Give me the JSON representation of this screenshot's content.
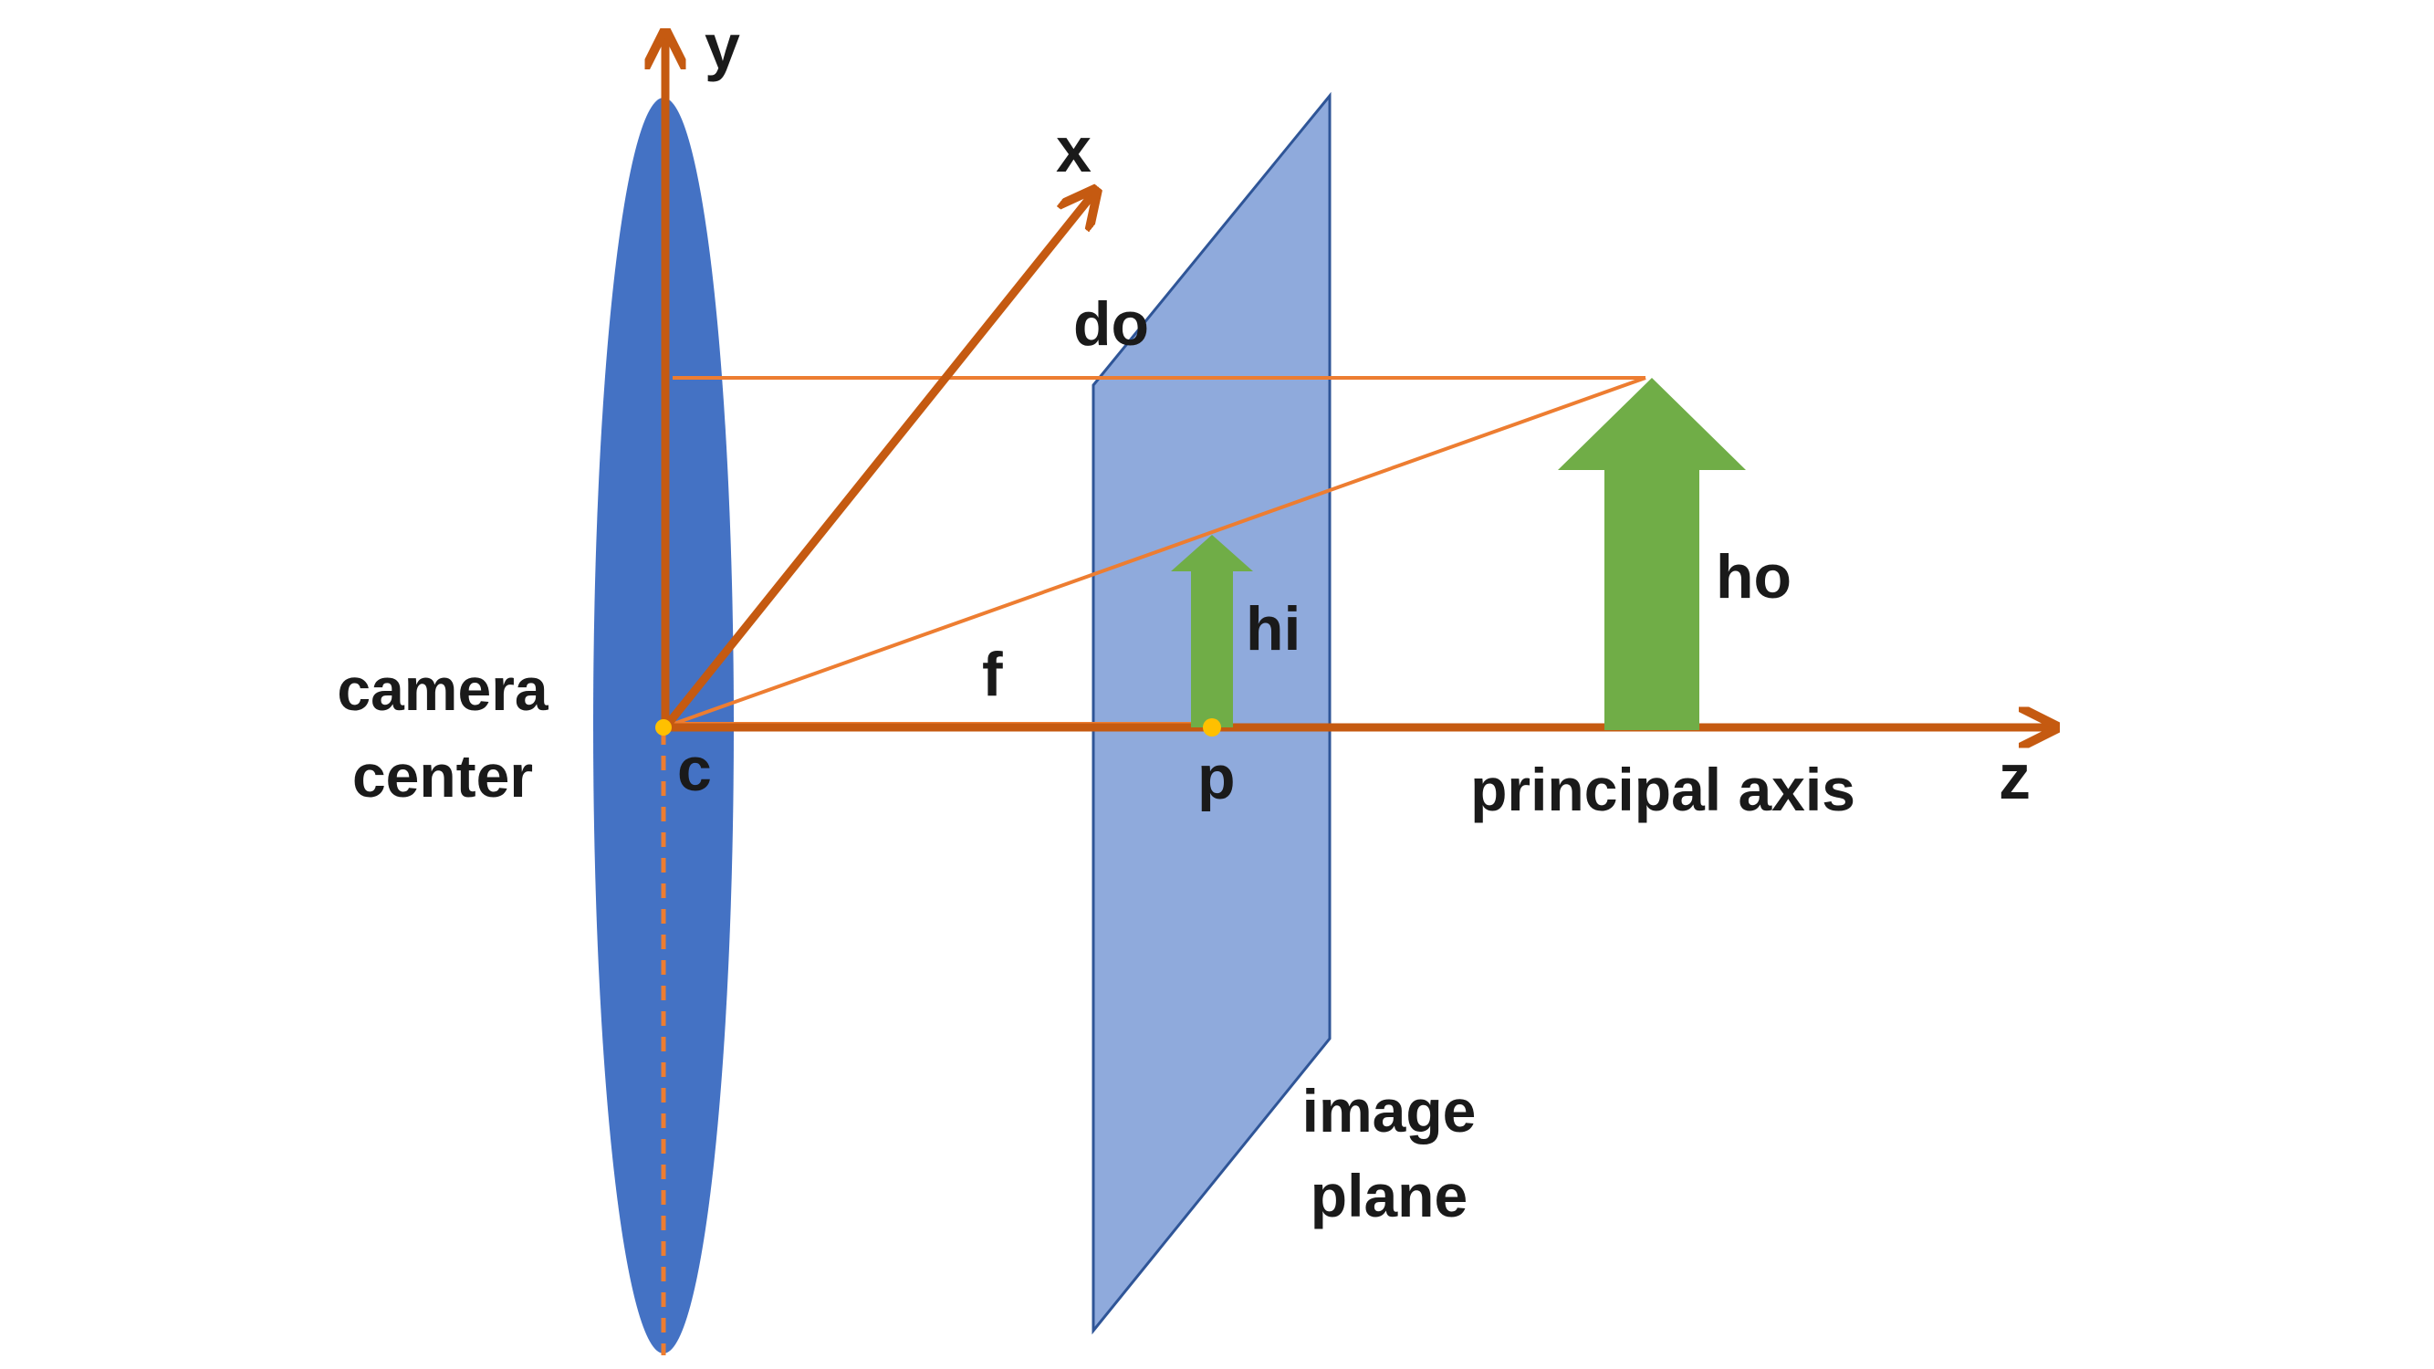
{
  "labels": {
    "y_axis": "y",
    "x_axis": "x",
    "z_axis": "z",
    "object_distance": "do",
    "object_height": "ho",
    "image_height": "hi",
    "focal_length": "f",
    "camera_center_line1": "camera",
    "camera_center_line2": "center",
    "center_point": "c",
    "principal_point": "p",
    "principal_axis": "principal axis",
    "image_plane_line1": "image",
    "image_plane_line2": "plane"
  },
  "colors": {
    "lens": "#4472C4",
    "image_plane": "#8FAADC",
    "image_plane_border": "#2F5597",
    "axes": "#C55A11",
    "rays": "#ED7D31",
    "arrows": "#70AD47",
    "points": "#FFC000",
    "text": "#1a1a1a"
  }
}
